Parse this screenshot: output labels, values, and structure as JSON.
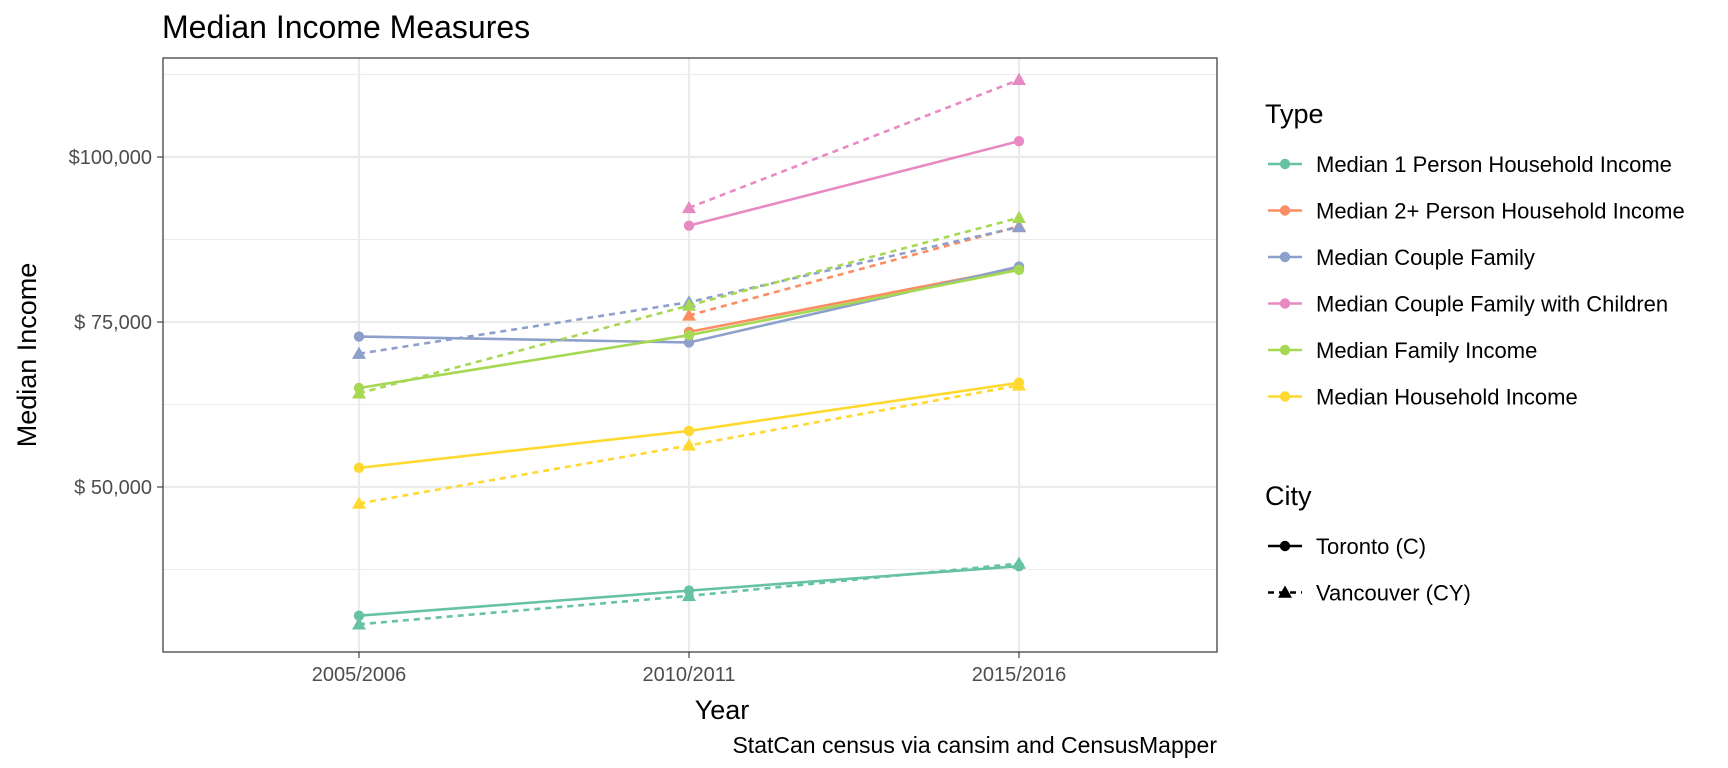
{
  "chart_data": {
    "type": "line",
    "title": "Median Income Measures",
    "xlabel": "Year",
    "ylabel": "Median Income",
    "caption": "StatCan census via cansim and CensusMapper",
    "categories": [
      "2005/2006",
      "2010/2011",
      "2015/2016"
    ],
    "ylim": [
      25000,
      115000
    ],
    "yticks": [
      {
        "value": 50000,
        "label": "$ 50,000"
      },
      {
        "value": 75000,
        "label": "$ 75,000"
      },
      {
        "value": 100000,
        "label": "$100,000"
      }
    ],
    "grid": true,
    "legend_position": "right",
    "color_legend": {
      "title": "Type",
      "items": [
        {
          "name": "Median 1 Person Household Income",
          "color": "#66c2a5"
        },
        {
          "name": "Median 2+ Person Household Income",
          "color": "#fc8d62"
        },
        {
          "name": "Median Couple Family",
          "color": "#8da0cb"
        },
        {
          "name": "Median Couple Family with Children",
          "color": "#e78ac3"
        },
        {
          "name": "Median Family Income",
          "color": "#a6d854"
        },
        {
          "name": "Median Household Income",
          "color": "#ffd92f"
        }
      ]
    },
    "style_legend": {
      "title": "City",
      "items": [
        {
          "name": "Toronto (C)",
          "line": "solid",
          "marker": "circle"
        },
        {
          "name": "Vancouver (CY)",
          "line": "dashed",
          "marker": "triangle"
        }
      ]
    },
    "series": [
      {
        "type": "Median 1 Person Household Income",
        "city": "Toronto (C)",
        "values": [
          30500,
          34300,
          38000
        ]
      },
      {
        "type": "Median 1 Person Household Income",
        "city": "Vancouver (CY)",
        "values": [
          29200,
          33500,
          38400
        ]
      },
      {
        "type": "Median 2+ Person Household Income",
        "city": "Toronto (C)",
        "values": [
          null,
          73500,
          83200
        ]
      },
      {
        "type": "Median 2+ Person Household Income",
        "city": "Vancouver (CY)",
        "values": [
          null,
          76000,
          89500
        ]
      },
      {
        "type": "Median Couple Family",
        "city": "Toronto (C)",
        "values": [
          72800,
          71900,
          83400
        ]
      },
      {
        "type": "Median Couple Family",
        "city": "Vancouver (CY)",
        "values": [
          70200,
          78000,
          89400
        ]
      },
      {
        "type": "Median Couple Family with Children",
        "city": "Toronto (C)",
        "values": [
          null,
          89600,
          102400
        ]
      },
      {
        "type": "Median Couple Family with Children",
        "city": "Vancouver (CY)",
        "values": [
          null,
          92300,
          111700
        ]
      },
      {
        "type": "Median Family Income",
        "city": "Toronto (C)",
        "values": [
          65000,
          73000,
          82900
        ]
      },
      {
        "type": "Median Family Income",
        "city": "Vancouver (CY)",
        "values": [
          64200,
          77500,
          90800
        ]
      },
      {
        "type": "Median Household Income",
        "city": "Toronto (C)",
        "values": [
          52900,
          58500,
          65800
        ]
      },
      {
        "type": "Median Household Income",
        "city": "Vancouver (CY)",
        "values": [
          47500,
          56300,
          65400
        ]
      }
    ]
  }
}
